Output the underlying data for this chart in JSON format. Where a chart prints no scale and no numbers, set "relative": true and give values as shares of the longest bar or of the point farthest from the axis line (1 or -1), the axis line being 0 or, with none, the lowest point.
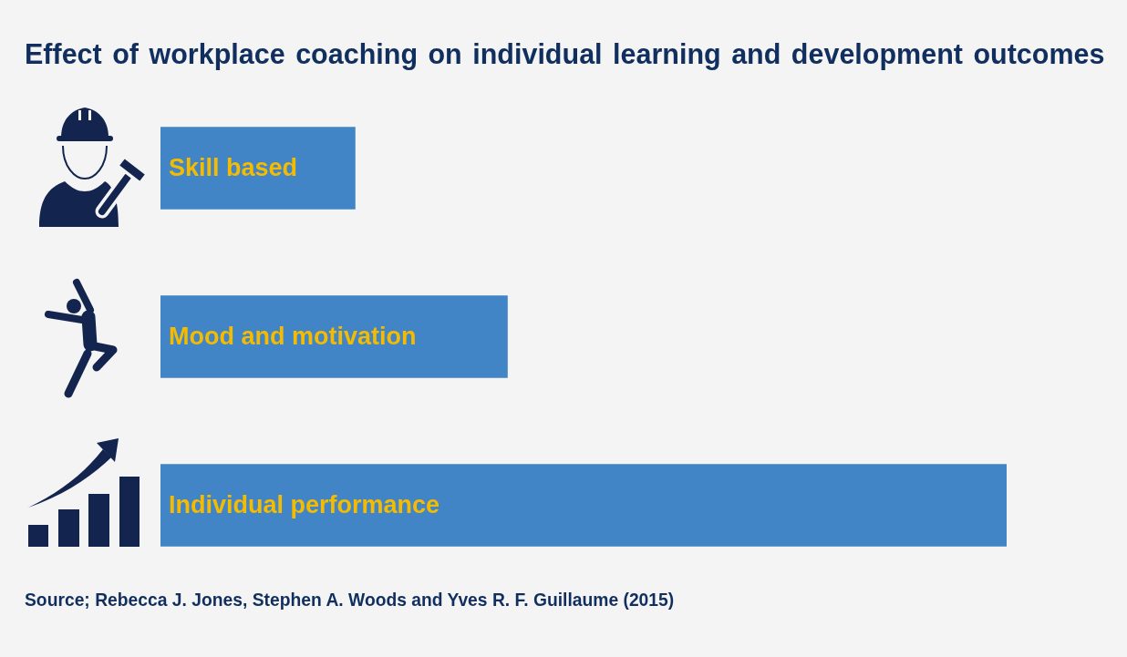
{
  "chart_data": {
    "type": "bar",
    "orientation": "horizontal",
    "relative": true,
    "title": "Effect of workplace coaching on individual learning and development outcomes",
    "categories": [
      "Skill based",
      "Mood and motivation",
      "Individual performance"
    ],
    "values": [
      0.23,
      0.41,
      1
    ],
    "color": "#4285c6",
    "annotations": [
      "Source; Rebecca J. Jones, Stephen A. Woods and Yves R. F. Guillaume (2015)"
    ]
  }
}
